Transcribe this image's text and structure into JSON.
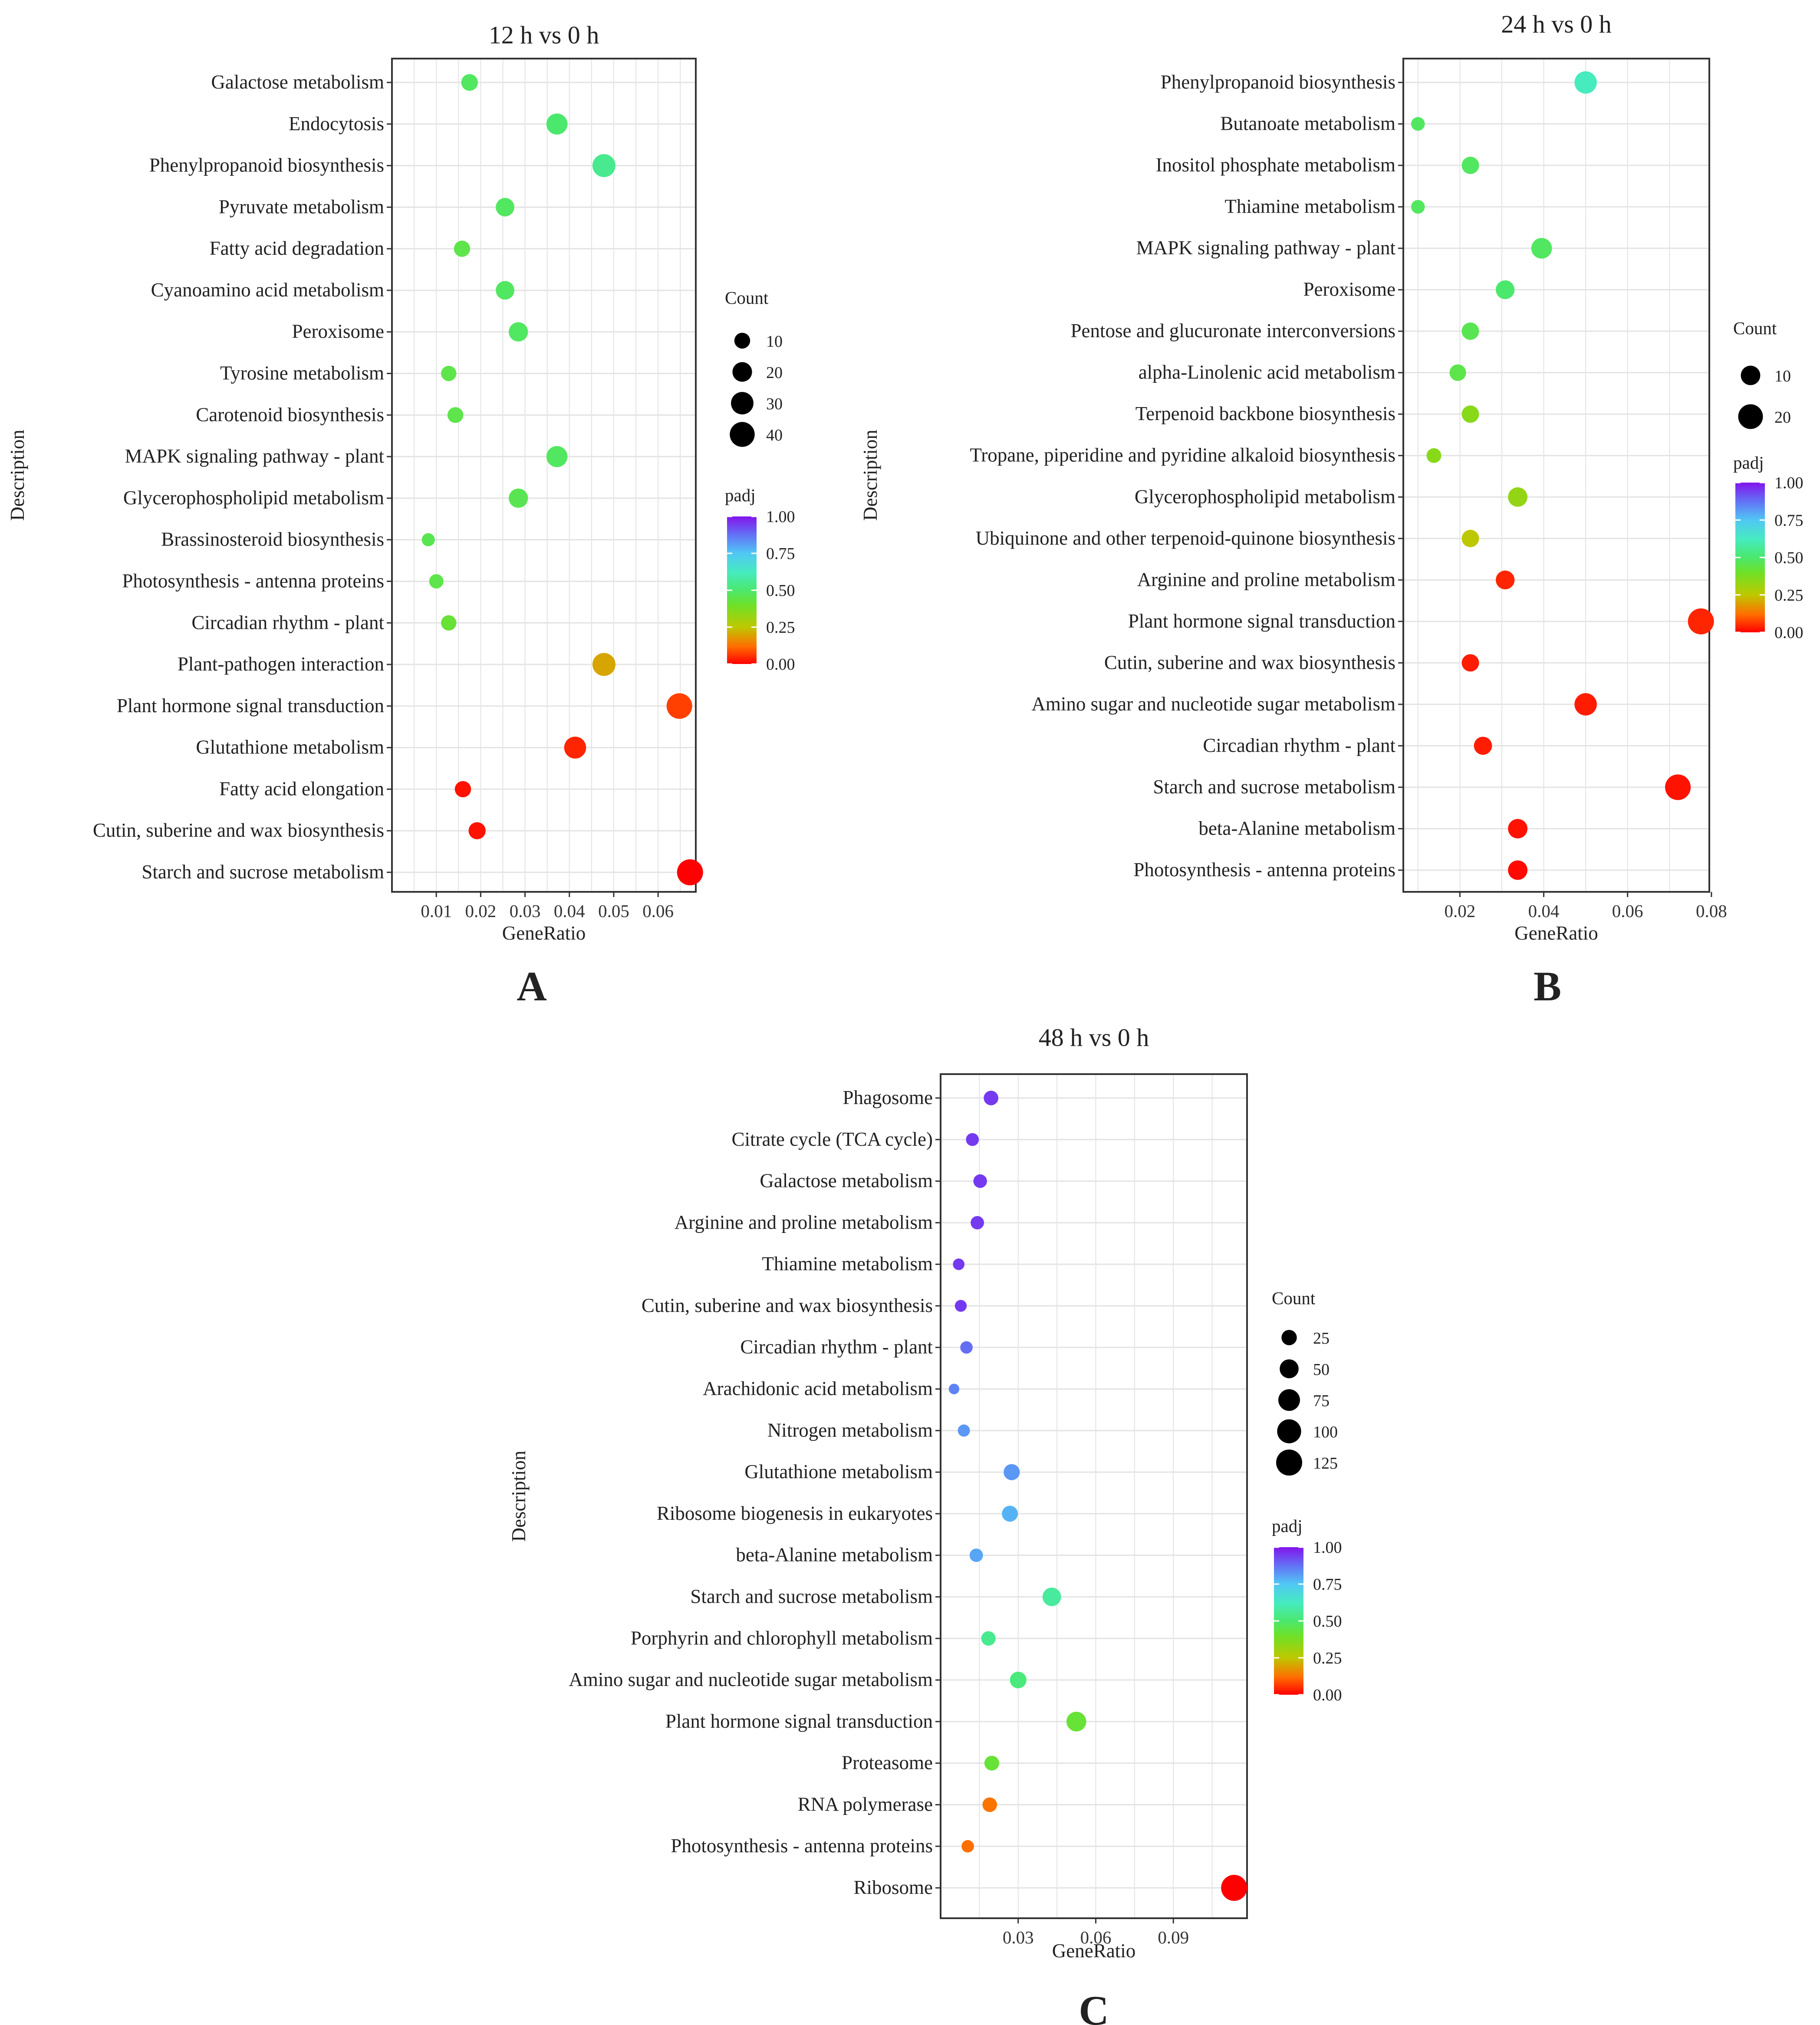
{
  "chart_data": [
    {
      "type": "scatter",
      "panel": "A",
      "title": "12 h vs 0 h",
      "xlabel": "GeneRatio",
      "ylabel": "Description",
      "xlim": [
        0.0,
        0.0685
      ],
      "xticks": [
        0.01,
        0.02,
        0.03,
        0.04,
        0.05,
        0.06
      ],
      "xtick_labels": [
        "0.01",
        "0.02",
        "0.03",
        "0.04",
        "0.05",
        "0.06"
      ],
      "count_legend": {
        "title": "Count",
        "values": [
          10,
          20,
          30,
          40
        ],
        "labels": [
          "10",
          "20",
          "30",
          "40"
        ]
      },
      "padj_legend": {
        "title": "padj",
        "ticks": [
          1.0,
          0.75,
          0.5,
          0.25,
          0.0
        ],
        "tick_labels": [
          "1.00",
          "0.75",
          "0.50",
          "0.25",
          "0.00"
        ]
      },
      "points": [
        {
          "description": "Galactose metabolism",
          "gene_ratio": 0.0175,
          "count": 12,
          "padj": 0.48
        },
        {
          "description": "Endocytosis",
          "gene_ratio": 0.0372,
          "count": 25,
          "padj": 0.5
        },
        {
          "description": "Phenylpropanoid biosynthesis",
          "gene_ratio": 0.0478,
          "count": 32,
          "padj": 0.55
        },
        {
          "description": "Pyruvate metabolism",
          "gene_ratio": 0.0255,
          "count": 17,
          "padj": 0.48
        },
        {
          "description": "Fatty acid degradation",
          "gene_ratio": 0.0158,
          "count": 11,
          "padj": 0.45
        },
        {
          "description": "Cyanoamino acid metabolism",
          "gene_ratio": 0.0255,
          "count": 17,
          "padj": 0.48
        },
        {
          "description": "Peroxisome",
          "gene_ratio": 0.0285,
          "count": 19,
          "padj": 0.48
        },
        {
          "description": "Tyrosine metabolism",
          "gene_ratio": 0.0128,
          "count": 9,
          "padj": 0.45
        },
        {
          "description": "Carotenoid biosynthesis",
          "gene_ratio": 0.0143,
          "count": 10,
          "padj": 0.45
        },
        {
          "description": "MAPK signaling pathway - plant",
          "gene_ratio": 0.0372,
          "count": 25,
          "padj": 0.48
        },
        {
          "description": "Glycerophospholipid metabolism",
          "gene_ratio": 0.0285,
          "count": 19,
          "padj": 0.46
        },
        {
          "description": "Brassinosteroid biosynthesis",
          "gene_ratio": 0.0082,
          "count": 5,
          "padj": 0.46
        },
        {
          "description": "Photosynthesis - antenna proteins",
          "gene_ratio": 0.01,
          "count": 7,
          "padj": 0.45
        },
        {
          "description": "Circadian rhythm - plant",
          "gene_ratio": 0.0128,
          "count": 9,
          "padj": 0.42
        },
        {
          "description": "Plant-pathogen interaction",
          "gene_ratio": 0.0478,
          "count": 32,
          "padj": 0.2
        },
        {
          "description": "Plant hormone signal transduction",
          "gene_ratio": 0.0648,
          "count": 43,
          "padj": 0.07
        },
        {
          "description": "Glutathione metabolism",
          "gene_ratio": 0.0413,
          "count": 28,
          "padj": 0.04
        },
        {
          "description": "Fatty acid elongation",
          "gene_ratio": 0.016,
          "count": 11,
          "padj": 0.02
        },
        {
          "description": "Cutin, suberine and wax biosynthesis",
          "gene_ratio": 0.0192,
          "count": 13,
          "padj": 0.02
        },
        {
          "description": "Starch and sucrose metabolism",
          "gene_ratio": 0.0672,
          "count": 45,
          "padj": 0.0
        }
      ]
    },
    {
      "type": "scatter",
      "panel": "B",
      "title": "24 h vs 0 h",
      "xlabel": "GeneRatio",
      "ylabel": "Description",
      "xlim": [
        0.0065,
        0.0795
      ],
      "xticks": [
        0.02,
        0.04,
        0.06,
        0.08
      ],
      "xtick_labels": [
        "0.02",
        "0.04",
        "0.06",
        "0.08"
      ],
      "count_legend": {
        "title": "Count",
        "values": [
          10,
          20
        ],
        "labels": [
          "10",
          "20"
        ]
      },
      "padj_legend": {
        "title": "padj",
        "ticks": [
          1.0,
          0.75,
          0.5,
          0.25,
          0.0
        ],
        "tick_labels": [
          "1.00",
          "0.75",
          "0.50",
          "0.25",
          "0.00"
        ]
      },
      "points": [
        {
          "description": "Phenylpropanoid biosynthesis",
          "gene_ratio": 0.05,
          "count": 15,
          "padj": 0.62
        },
        {
          "description": "Butanoate metabolism",
          "gene_ratio": 0.01,
          "count": 3,
          "padj": 0.48
        },
        {
          "description": "Inositol phosphate metabolism",
          "gene_ratio": 0.0225,
          "count": 7,
          "padj": 0.48
        },
        {
          "description": "Thiamine metabolism",
          "gene_ratio": 0.01,
          "count": 3,
          "padj": 0.48
        },
        {
          "description": "MAPK signaling pathway - plant",
          "gene_ratio": 0.0395,
          "count": 12,
          "padj": 0.48
        },
        {
          "description": "Peroxisome",
          "gene_ratio": 0.0308,
          "count": 9,
          "padj": 0.5
        },
        {
          "description": "Pentose and glucuronate interconversions",
          "gene_ratio": 0.0225,
          "count": 7,
          "padj": 0.46
        },
        {
          "description": "alpha-Linolenic acid metabolism",
          "gene_ratio": 0.0195,
          "count": 6,
          "padj": 0.45
        },
        {
          "description": "Terpenoid backbone biosynthesis",
          "gene_ratio": 0.0225,
          "count": 7,
          "padj": 0.35
        },
        {
          "description": "Tropane, piperidine and pyridine alkaloid biosynthesis",
          "gene_ratio": 0.0138,
          "count": 4,
          "padj": 0.35
        },
        {
          "description": "Glycerophospholipid metabolism",
          "gene_ratio": 0.0338,
          "count": 10,
          "padj": 0.33
        },
        {
          "description": "Ubiquinone and other terpenoid-quinone biosynthesis",
          "gene_ratio": 0.0225,
          "count": 7,
          "padj": 0.25
        },
        {
          "description": "Arginine and proline metabolism",
          "gene_ratio": 0.0308,
          "count": 9,
          "padj": 0.04
        },
        {
          "description": "Plant hormone signal transduction",
          "gene_ratio": 0.0775,
          "count": 23,
          "padj": 0.04
        },
        {
          "description": "Cutin, suberine and wax biosynthesis",
          "gene_ratio": 0.0225,
          "count": 7,
          "padj": 0.03
        },
        {
          "description": "Amino sugar and nucleotide sugar metabolism",
          "gene_ratio": 0.05,
          "count": 15,
          "padj": 0.03
        },
        {
          "description": "Circadian rhythm - plant",
          "gene_ratio": 0.0255,
          "count": 8,
          "padj": 0.03
        },
        {
          "description": "Starch and sucrose metabolism",
          "gene_ratio": 0.072,
          "count": 22,
          "padj": 0.02
        },
        {
          "description": "beta-Alanine metabolism",
          "gene_ratio": 0.0338,
          "count": 10,
          "padj": 0.02
        },
        {
          "description": "Photosynthesis - antenna proteins",
          "gene_ratio": 0.0338,
          "count": 10,
          "padj": 0.01
        }
      ]
    },
    {
      "type": "scatter",
      "panel": "C",
      "title": "48 h vs 0 h",
      "xlabel": "GeneRatio",
      "ylabel": "Description",
      "xlim": [
        0.0,
        0.1185
      ],
      "xticks": [
        0.03,
        0.06,
        0.09
      ],
      "xtick_labels": [
        "0.03",
        "0.06",
        "0.09"
      ],
      "count_legend": {
        "title": "Count",
        "values": [
          25,
          50,
          75,
          100,
          125
        ],
        "labels": [
          "25",
          "50",
          "75",
          "100",
          "125"
        ]
      },
      "padj_legend": {
        "title": "padj",
        "ticks": [
          1.0,
          0.75,
          0.5,
          0.25,
          0.0
        ],
        "tick_labels": [
          "1.00",
          "0.75",
          "0.50",
          "0.25",
          "0.00"
        ]
      },
      "points": [
        {
          "description": "Phagosome",
          "gene_ratio": 0.0195,
          "count": 21,
          "padj": 0.95
        },
        {
          "description": "Citrate cycle (TCA cycle)",
          "gene_ratio": 0.0123,
          "count": 13,
          "padj": 0.95
        },
        {
          "description": "Galactose metabolism",
          "gene_ratio": 0.0153,
          "count": 16,
          "padj": 0.95
        },
        {
          "description": "Arginine and proline metabolism",
          "gene_ratio": 0.0142,
          "count": 15,
          "padj": 0.95
        },
        {
          "description": "Thiamine metabolism",
          "gene_ratio": 0.007,
          "count": 8,
          "padj": 0.95
        },
        {
          "description": "Cutin, suberine and wax biosynthesis",
          "gene_ratio": 0.0078,
          "count": 9,
          "padj": 0.95
        },
        {
          "description": "Circadian rhythm - plant",
          "gene_ratio": 0.01,
          "count": 11,
          "padj": 0.88
        },
        {
          "description": "Arachidonic acid metabolism",
          "gene_ratio": 0.0052,
          "count": 5,
          "padj": 0.85
        },
        {
          "description": "Nitrogen metabolism",
          "gene_ratio": 0.009,
          "count": 10,
          "padj": 0.82
        },
        {
          "description": "Glutathione metabolism",
          "gene_ratio": 0.0275,
          "count": 30,
          "padj": 0.82
        },
        {
          "description": "Ribosome biogenesis in eukaryotes",
          "gene_ratio": 0.0268,
          "count": 29,
          "padj": 0.78
        },
        {
          "description": "beta-Alanine metabolism",
          "gene_ratio": 0.0138,
          "count": 15,
          "padj": 0.8
        },
        {
          "description": "Starch and sucrose metabolism",
          "gene_ratio": 0.043,
          "count": 47,
          "padj": 0.57
        },
        {
          "description": "Porphyrin and chlorophyll metabolism",
          "gene_ratio": 0.0185,
          "count": 20,
          "padj": 0.55
        },
        {
          "description": "Amino sugar and nucleotide sugar metabolism",
          "gene_ratio": 0.03,
          "count": 33,
          "padj": 0.52
        },
        {
          "description": "Plant hormone signal transduction",
          "gene_ratio": 0.0525,
          "count": 57,
          "padj": 0.42
        },
        {
          "description": "Proteasome",
          "gene_ratio": 0.0198,
          "count": 22,
          "padj": 0.42
        },
        {
          "description": "RNA polymerase",
          "gene_ratio": 0.019,
          "count": 21,
          "padj": 0.13
        },
        {
          "description": "Photosynthesis - antenna proteins",
          "gene_ratio": 0.0105,
          "count": 11,
          "padj": 0.12
        },
        {
          "description": "Ribosome",
          "gene_ratio": 0.1135,
          "count": 125,
          "padj": 0.0
        }
      ]
    }
  ]
}
